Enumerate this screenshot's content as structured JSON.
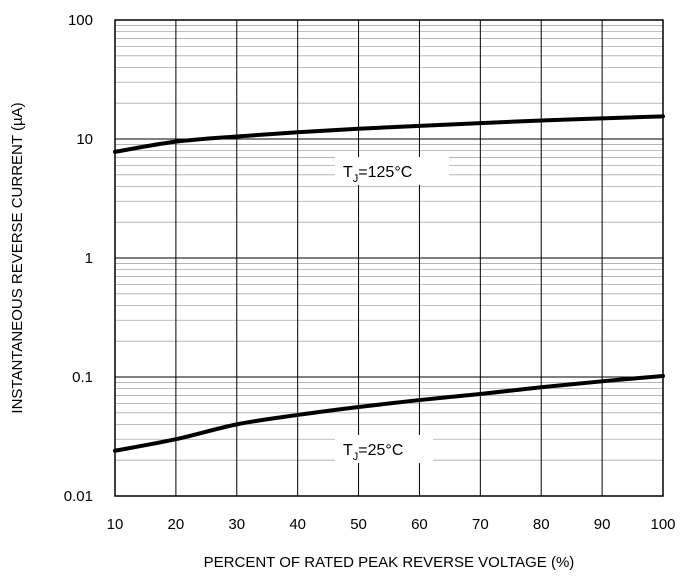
{
  "chart_data": {
    "type": "line",
    "xlabel": "PERCENT OF RATED PEAK REVERSE VOLTAGE (%)",
    "ylabel": "INSTANTANEOUS REVERSE CURRENT (µA)",
    "xlim": [
      10,
      100
    ],
    "ylim": [
      0.01,
      100
    ],
    "y_scale": "log",
    "grid": true,
    "x_ticks": [
      "10",
      "20",
      "30",
      "40",
      "50",
      "60",
      "70",
      "80",
      "90",
      "100"
    ],
    "y_ticks": [
      "0.01",
      "0.1",
      "1",
      "10",
      "100"
    ],
    "series": [
      {
        "label_main": "T",
        "label_sub": "J",
        "label_rest": "=125°C",
        "x": [
          10,
          20,
          30,
          40,
          50,
          60,
          70,
          80,
          90,
          100
        ],
        "y": [
          7.8,
          9.5,
          10.5,
          11.4,
          12.2,
          12.9,
          13.6,
          14.3,
          14.9,
          15.5
        ]
      },
      {
        "label_main": "T",
        "label_sub": "J",
        "label_rest": "=25°C",
        "x": [
          10,
          20,
          30,
          40,
          50,
          60,
          70,
          80,
          90,
          100
        ],
        "y": [
          0.024,
          0.03,
          0.04,
          0.048,
          0.056,
          0.064,
          0.072,
          0.082,
          0.092,
          0.102
        ]
      }
    ]
  }
}
